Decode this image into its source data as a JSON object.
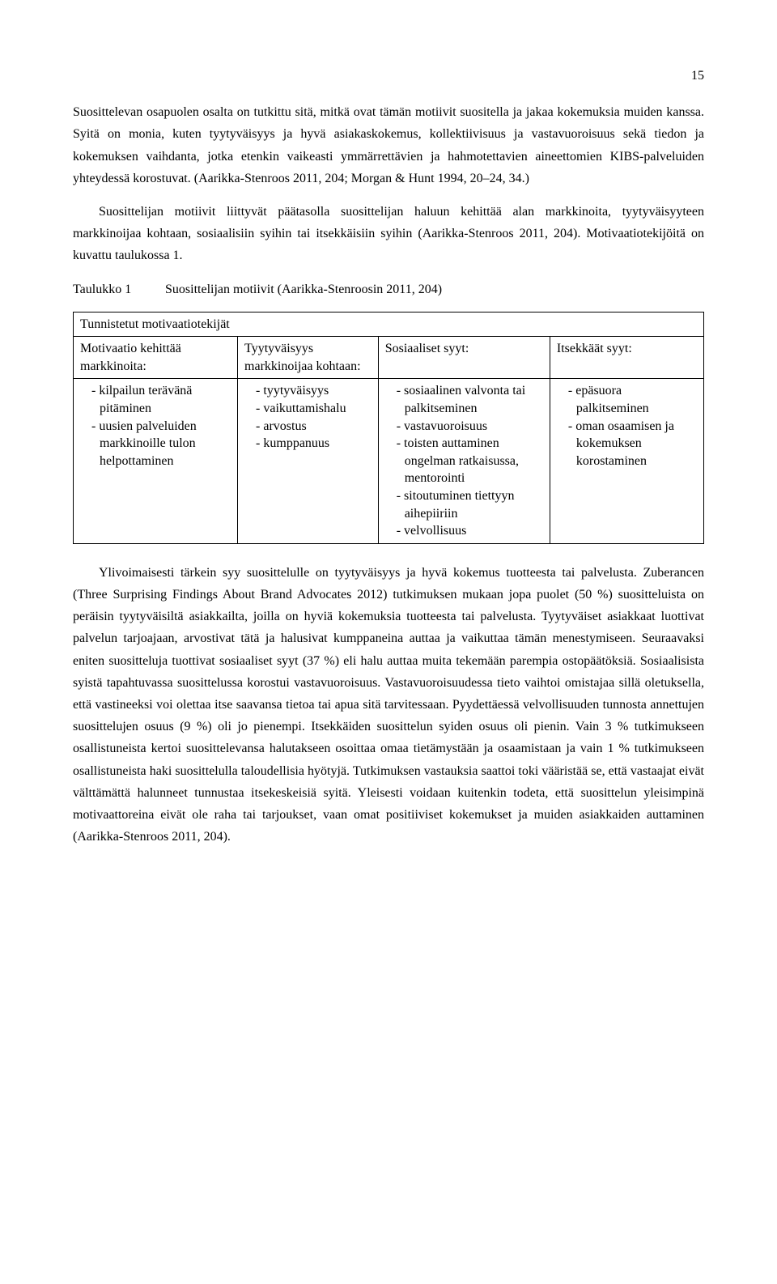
{
  "page_number": "15",
  "para1": "Suosittelevan osapuolen osalta on tutkittu sitä, mitkä ovat tämän motiivit suositella ja jakaa kokemuksia muiden kanssa. Syitä on monia, kuten tyytyväisyys ja hyvä asiakaskokemus, kollektiivisuus ja vastavuoroisuus sekä tiedon ja kokemuksen vaihdanta, jotka etenkin vaikeasti ymmärrettävien ja hahmotettavien aineettomien KIBS-palveluiden yhteydessä korostuvat. (Aarikka-Stenroos 2011, 204; Morgan & Hunt 1994, 20–24, 34.)",
  "para2": "Suosittelijan motiivit liittyvät päätasolla suosittelijan haluun kehittää alan markkinoita, tyytyväisyyteen markkinoijaa kohtaan, sosiaalisiin syihin tai itsekkäisiin syihin (Aarikka-Stenroos 2011, 204). Motivaatiotekijöitä on kuvattu taulukossa 1.",
  "table_caption": {
    "label": "Taulukko 1",
    "text": "Suosittelijan motiivit (Aarikka-Stenroosin 2011, 204)"
  },
  "table": {
    "header_span": "Tunnistetut motivaatiotekijät",
    "columns": [
      {
        "header": "Motivaatio kehittää markkinoita:",
        "items": [
          "kilpailun terävänä pitäminen",
          "uusien palveluiden markkinoille tulon helpottaminen"
        ]
      },
      {
        "header": "Tyytyväisyys markkinoijaa kohtaan:",
        "items": [
          "tyytyväisyys",
          "vaikuttamishalu",
          "arvostus",
          "kumppanuus"
        ]
      },
      {
        "header": "Sosiaaliset syyt:",
        "items": [
          "sosiaalinen valvonta tai palkitseminen",
          "vastavuoroisuus",
          "toisten auttaminen ongelman ratkaisussa, mentorointi",
          "sitoutuminen tiettyyn aihepiiriin",
          "velvollisuus"
        ]
      },
      {
        "header": "Itsekkäät syyt:",
        "items": [
          "epäsuora palkitseminen",
          "oman osaamisen ja kokemuksen korostaminen"
        ]
      }
    ]
  },
  "para3": "Ylivoimaisesti tärkein syy suosittelulle on tyytyväisyys ja hyvä kokemus tuotteesta tai palvelusta. Zuberancen (Three Surprising Findings About Brand Advocates 2012) tutkimuksen mukaan jopa puolet (50 %) suositteluista on peräisin tyytyväisiltä asiakkailta, joilla on hyviä kokemuksia tuotteesta tai palvelusta. Tyytyväiset asiakkaat luottivat palvelun tarjoajaan, arvostivat tätä ja halusivat kumppaneina auttaa ja vaikuttaa tämän menestymiseen. Seuraavaksi eniten suositteluja tuottivat sosiaaliset syyt (37 %) eli halu auttaa muita tekemään parempia ostopäätöksiä. Sosiaalisista syistä tapahtuvassa suosittelussa korostui vastavuoroisuus. Vastavuoroisuudessa tieto vaihtoi omistajaa sillä oletuksella, että vastineeksi voi olettaa itse saavansa tietoa tai apua sitä tarvitessaan. Pyydettäessä velvollisuuden tunnosta annettujen suosittelujen osuus (9 %) oli jo pienempi. Itsekkäiden suosittelun syiden osuus oli pienin. Vain 3 % tutkimukseen osallistuneista kertoi suosittelevansa halutakseen osoittaa omaa tietämystään ja osaamistaan ja vain 1 % tutkimukseen osallistuneista haki suosittelulla taloudellisia hyötyjä. Tutkimuksen vastauksia saattoi toki vääristää se, että vastaajat eivät välttämättä halunneet tunnustaa itsekeskeisiä syitä. Yleisesti voidaan kuitenkin todeta, että suosittelun yleisimpinä motivaattoreina eivät ole raha tai tarjoukset, vaan omat positiiviset kokemukset ja muiden asiakkaiden auttaminen (Aarikka-Stenroos 2011, 204)."
}
